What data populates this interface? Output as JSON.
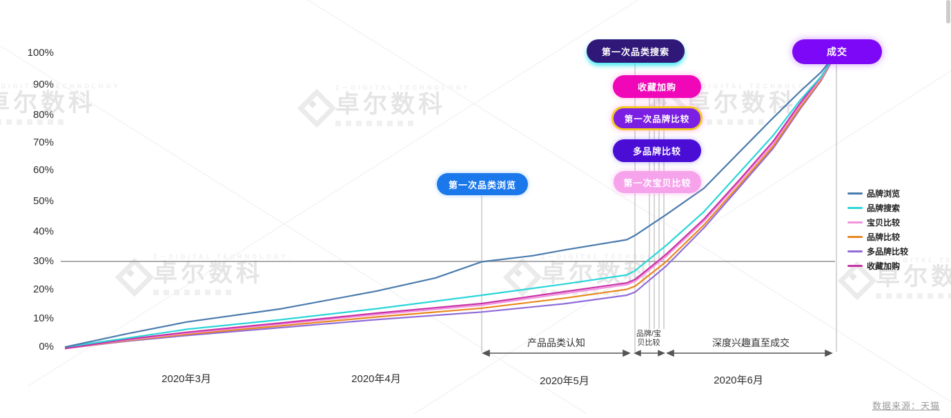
{
  "source_note": "数据来源：天猫",
  "watermark": {
    "top_text": "Z－DIGITAL TECHNOLOGY.",
    "main_text": "卓尔数科"
  },
  "y_axis": {
    "tick_labels": [
      "100%",
      "90%",
      "80%",
      "70%",
      "60%",
      "50%",
      "40%",
      "30%",
      "20%",
      "10%",
      "0%"
    ]
  },
  "badges": [
    {
      "label": "第一次品类浏览",
      "fill": "#1a78ea"
    },
    {
      "label": "第一次品类搜索",
      "fill": "#2f1878"
    },
    {
      "label": "收藏加购",
      "fill": "#ef07b8"
    },
    {
      "label": "第一次品牌比较",
      "fill": "#7b1fe3",
      "border": "#f5c91d"
    },
    {
      "label": "多品牌比较",
      "fill": "#4a0dd6"
    },
    {
      "label": "第一次宝贝比较",
      "fill": "#f6a3ec"
    },
    {
      "label": "成交",
      "fill": "#7d08f7"
    }
  ],
  "legend": [
    {
      "label": "品牌浏览",
      "color": "#4a7bad"
    },
    {
      "label": "品牌搜索",
      "color": "#2ad5d8"
    },
    {
      "label": "宝贝比较",
      "color": "#f193dd"
    },
    {
      "label": "品牌比较",
      "color": "#e8871e"
    },
    {
      "label": "多品牌比较",
      "color": "#8f6cd8"
    },
    {
      "label": "收藏加购",
      "color": "#c931a8"
    }
  ],
  "annotations": {
    "phase1": "产品品类认知",
    "phase2_line1": "品牌/宝",
    "phase2_line2": "贝比较",
    "phase3": "深度兴趣直至成交"
  },
  "chart_data": {
    "type": "line",
    "title": "",
    "xlabel": "",
    "ylabel": "",
    "x_axis_labels": [
      "2020年3月",
      "2020年4月",
      "2020年5月",
      "2020年6月"
    ],
    "ylim": [
      0,
      100
    ],
    "y_ticks": [
      0,
      10,
      20,
      30,
      40,
      50,
      60,
      70,
      80,
      90,
      100
    ],
    "grid_line_y": 30,
    "legend_position": "right",
    "x_unit": "percent position along Mar–Jun 2020 time axis (0–100)",
    "events": [
      {
        "label": "第一次品类浏览",
        "t": 54.0
      },
      {
        "label": "第一次品类搜索",
        "t": 73.9
      },
      {
        "label": "收藏加购",
        "t": 75.7
      },
      {
        "label": "第一次品牌比较",
        "t": 76.4
      },
      {
        "label": "多品牌比较",
        "t": 77.0
      },
      {
        "label": "第一次宝贝比较",
        "t": 77.6
      },
      {
        "label": "成交",
        "t": 100.0
      }
    ],
    "series": [
      {
        "key": "duo-pinpai-bijiao",
        "name": "多品牌比较",
        "color": "#8f6cd8",
        "points": [
          [
            0,
            -0.5
          ],
          [
            8,
            2
          ],
          [
            15.7,
            3.9
          ],
          [
            28,
            6.6
          ],
          [
            40.3,
            9.3
          ],
          [
            54,
            11.9
          ],
          [
            64.7,
            14.7
          ],
          [
            72.8,
            17.6
          ],
          [
            73.9,
            18.7
          ],
          [
            77.9,
            27.5
          ],
          [
            82.8,
            40.5
          ],
          [
            87.3,
            54
          ],
          [
            91.8,
            67.6
          ],
          [
            95.3,
            81
          ],
          [
            98,
            90.6
          ],
          [
            100,
            100
          ]
        ]
      },
      {
        "key": "pinpai-bijiao",
        "name": "品牌比较",
        "color": "#e8871e",
        "points": [
          [
            0,
            -0.5
          ],
          [
            8,
            2.2
          ],
          [
            15.7,
            4.3
          ],
          [
            28,
            7.2
          ],
          [
            40.3,
            10.2
          ],
          [
            54,
            13.2
          ],
          [
            64.7,
            16.6
          ],
          [
            72.8,
            19.6
          ],
          [
            73.9,
            20.7
          ],
          [
            77.9,
            29
          ],
          [
            82.8,
            41.5
          ],
          [
            87.3,
            54.8
          ],
          [
            91.8,
            68.3
          ],
          [
            95.3,
            81.5
          ],
          [
            98,
            91
          ],
          [
            100,
            100
          ]
        ]
      },
      {
        "key": "baobei-bijiao",
        "name": "宝贝比较",
        "color": "#f193dd",
        "points": [
          [
            0,
            -0.5
          ],
          [
            8,
            2.4
          ],
          [
            15.7,
            4.7
          ],
          [
            28,
            7.8
          ],
          [
            40.3,
            11
          ],
          [
            54,
            14.2
          ],
          [
            64.7,
            18.2
          ],
          [
            72.8,
            21.2
          ],
          [
            73.9,
            22.4
          ],
          [
            77.9,
            30.8
          ],
          [
            82.8,
            42.8
          ],
          [
            87.3,
            55.8
          ],
          [
            91.8,
            69.2
          ],
          [
            95.3,
            82.3
          ],
          [
            98,
            91.5
          ],
          [
            100,
            100
          ]
        ]
      },
      {
        "key": "shoucang-jiagou",
        "name": "收藏加购",
        "color": "#c931a8",
        "points": [
          [
            0,
            -0.5
          ],
          [
            8,
            2.6
          ],
          [
            15.7,
            5
          ],
          [
            28,
            8.2
          ],
          [
            40.3,
            11.5
          ],
          [
            54,
            14.8
          ],
          [
            64.7,
            18.8
          ],
          [
            72.8,
            21.8
          ],
          [
            73.9,
            23
          ],
          [
            77.9,
            31.5
          ],
          [
            82.8,
            43.5
          ],
          [
            87.3,
            56.5
          ],
          [
            91.8,
            70
          ],
          [
            95.3,
            83
          ],
          [
            98,
            92
          ],
          [
            100,
            100
          ]
        ]
      },
      {
        "key": "pinpai-sousuo",
        "name": "品牌搜索",
        "color": "#2ad5d8",
        "points": [
          [
            0,
            0
          ],
          [
            8,
            3
          ],
          [
            15.7,
            6
          ],
          [
            28,
            9.3
          ],
          [
            40.3,
            13
          ],
          [
            54,
            17.6
          ],
          [
            64.7,
            21.4
          ],
          [
            72.8,
            24.5
          ],
          [
            73.9,
            26
          ],
          [
            77.9,
            34.5
          ],
          [
            82.8,
            46
          ],
          [
            87.3,
            59
          ],
          [
            91.8,
            72
          ],
          [
            95.3,
            84
          ],
          [
            98,
            92
          ],
          [
            100,
            100
          ]
        ]
      },
      {
        "key": "pinpai-liulan",
        "name": "品牌浏览",
        "color": "#4a7bad",
        "points": [
          [
            0,
            0
          ],
          [
            8,
            4.5
          ],
          [
            15.7,
            8.5
          ],
          [
            28,
            13
          ],
          [
            40.3,
            19
          ],
          [
            48,
            23.5
          ],
          [
            54,
            29
          ],
          [
            60.5,
            31
          ],
          [
            64.7,
            33
          ],
          [
            71.2,
            35.8
          ],
          [
            72.8,
            36.5
          ],
          [
            73.9,
            38
          ],
          [
            77.9,
            45
          ],
          [
            82.8,
            54
          ],
          [
            87.3,
            66
          ],
          [
            91.8,
            78
          ],
          [
            95.3,
            87
          ],
          [
            98,
            93.5
          ],
          [
            100,
            100
          ]
        ]
      }
    ]
  }
}
